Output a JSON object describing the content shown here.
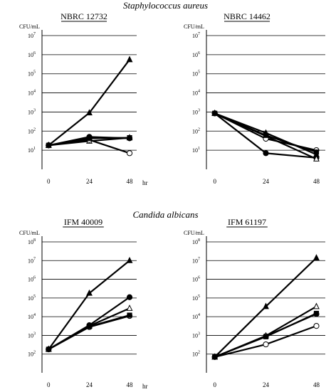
{
  "sections": {
    "staph": "Staphylococcus aureus",
    "candida": "Candida albicans"
  },
  "chart_data": [
    {
      "type": "line",
      "title": "NBRC 12732",
      "ylabel": "CFU/mL",
      "xunit": "hr",
      "log_scale": true,
      "ylim_exp": [
        0,
        7
      ],
      "ytick_exps": [
        1,
        2,
        3,
        4,
        5,
        6,
        7
      ],
      "x": [
        0,
        24,
        48
      ],
      "grid": true,
      "series": [
        {
          "marker": "filled-triangle",
          "values": [
            18,
            900,
            550000
          ]
        },
        {
          "marker": "filled-circle",
          "values": [
            18,
            50,
            42
          ]
        },
        {
          "marker": "open-triangle",
          "values": [
            18,
            30,
            45
          ]
        },
        {
          "marker": "open-circle",
          "values": [
            18,
            35,
            7
          ]
        },
        {
          "marker": "filled-square",
          "values": [
            18,
            42,
            45
          ]
        }
      ]
    },
    {
      "type": "line",
      "title": "NBRC 14462",
      "ylabel": "CFU/mL",
      "xunit": "hr",
      "log_scale": true,
      "ylim_exp": [
        0,
        7
      ],
      "ytick_exps": [
        1,
        2,
        3,
        4,
        5,
        6,
        7
      ],
      "x": [
        0,
        24,
        48
      ],
      "grid": true,
      "series": [
        {
          "marker": "filled-triangle",
          "values": [
            850,
            80,
            6
          ]
        },
        {
          "marker": "filled-circle",
          "values": [
            850,
            7,
            4
          ]
        },
        {
          "marker": "open-triangle",
          "values": [
            850,
            55,
            3.5
          ]
        },
        {
          "marker": "open-circle",
          "values": [
            850,
            40,
            10
          ]
        },
        {
          "marker": "filled-square",
          "values": [
            850,
            60,
            8
          ]
        }
      ]
    },
    {
      "type": "line",
      "title": "IFM 40009",
      "ylabel": "CFU/mL",
      "xunit": "hr",
      "log_scale": true,
      "ylim_exp": [
        1,
        8
      ],
      "ytick_exps": [
        2,
        3,
        4,
        5,
        6,
        7,
        8
      ],
      "x": [
        0,
        24,
        48
      ],
      "grid": true,
      "series": [
        {
          "marker": "filled-triangle",
          "values": [
            180,
            180000,
            10000000
          ]
        },
        {
          "marker": "filled-circle",
          "values": [
            180,
            3500,
            110000
          ]
        },
        {
          "marker": "open-triangle",
          "values": [
            180,
            3200,
            28000
          ]
        },
        {
          "marker": "open-circle",
          "values": [
            180,
            2800,
            11000
          ]
        },
        {
          "marker": "filled-square",
          "values": [
            180,
            3000,
            12000
          ]
        }
      ]
    },
    {
      "type": "line",
      "title": "IFM 61197",
      "ylabel": "CFU/mL",
      "xunit": "hr",
      "log_scale": true,
      "ylim_exp": [
        1,
        8
      ],
      "ytick_exps": [
        2,
        3,
        4,
        5,
        6,
        7,
        8
      ],
      "x": [
        0,
        24,
        48
      ],
      "grid": true,
      "series": [
        {
          "marker": "filled-triangle",
          "values": [
            70,
            35000,
            14000000
          ]
        },
        {
          "marker": "filled-circle",
          "values": [
            70,
            900,
            14000
          ]
        },
        {
          "marker": "open-triangle",
          "values": [
            70,
            950,
            35000
          ]
        },
        {
          "marker": "open-circle",
          "values": [
            70,
            330,
            3200
          ]
        },
        {
          "marker": "filled-square",
          "values": [
            70,
            850,
            15000
          ]
        }
      ]
    }
  ]
}
